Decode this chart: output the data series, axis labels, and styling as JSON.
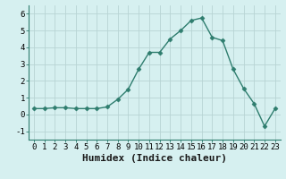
{
  "x": [
    0,
    1,
    2,
    3,
    4,
    5,
    6,
    7,
    8,
    9,
    10,
    11,
    12,
    13,
    14,
    15,
    16,
    17,
    18,
    19,
    20,
    21,
    22,
    23
  ],
  "y": [
    0.35,
    0.35,
    0.4,
    0.4,
    0.35,
    0.35,
    0.35,
    0.45,
    0.9,
    1.5,
    2.7,
    3.7,
    3.7,
    4.5,
    5.0,
    5.6,
    5.75,
    4.6,
    4.4,
    2.7,
    1.55,
    0.65,
    -0.7,
    0.35
  ],
  "line_color": "#2e7d6e",
  "marker": "D",
  "markersize": 2.5,
  "bg_color": "#d6f0f0",
  "grid_color": "#b8d4d4",
  "xlabel": "Humidex (Indice chaleur)",
  "xlabel_fontsize": 8,
  "xlim": [
    -0.5,
    23.5
  ],
  "ylim": [
    -1.5,
    6.5
  ],
  "yticks": [
    -1,
    0,
    1,
    2,
    3,
    4,
    5,
    6
  ],
  "xticks": [
    0,
    1,
    2,
    3,
    4,
    5,
    6,
    7,
    8,
    9,
    10,
    11,
    12,
    13,
    14,
    15,
    16,
    17,
    18,
    19,
    20,
    21,
    22,
    23
  ],
  "tick_fontsize": 6.5,
  "linewidth": 1.0,
  "font_family": "monospace"
}
